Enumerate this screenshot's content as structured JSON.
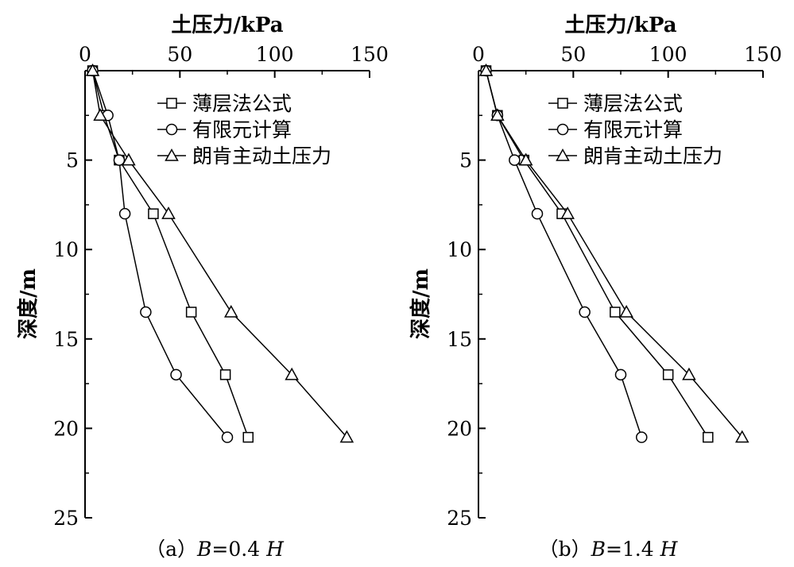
{
  "chart_data": [
    {
      "type": "line",
      "xlabel": "土压力/kPa",
      "ylabel": "深度/m",
      "xlim": [
        0,
        150
      ],
      "ylim": [
        0,
        25
      ],
      "x_axis_position": "top",
      "y_axis_inverted": true,
      "xticks": [
        0,
        50,
        100,
        150
      ],
      "yticks": [
        5,
        10,
        15,
        20,
        25
      ],
      "grid": false,
      "legend_position": "top-right",
      "caption": {
        "prefix": "（a）",
        "var": "B",
        "mid": "=0.4 ",
        "var2": "H"
      },
      "series": [
        {
          "name": "薄层法公式",
          "marker": "square",
          "points": [
            [
              4,
              0
            ],
            [
              10,
              2.5
            ],
            [
              18,
              5
            ],
            [
              36,
              8
            ],
            [
              56,
              13.5
            ],
            [
              74,
              17
            ],
            [
              86,
              20.5
            ]
          ]
        },
        {
          "name": "有限元计算",
          "marker": "circle",
          "points": [
            [
              4,
              0
            ],
            [
              12,
              2.5
            ],
            [
              18,
              5
            ],
            [
              21,
              8
            ],
            [
              32,
              13.5
            ],
            [
              48,
              17
            ],
            [
              75,
              20.5
            ]
          ]
        },
        {
          "name": "朗肯主动土压力",
          "marker": "triangle",
          "points": [
            [
              4,
              0
            ],
            [
              8,
              2.5
            ],
            [
              23,
              5
            ],
            [
              44,
              8
            ],
            [
              77,
              13.5
            ],
            [
              109,
              17
            ],
            [
              138,
              20.5
            ]
          ]
        }
      ]
    },
    {
      "type": "line",
      "xlabel": "土压力/kPa",
      "ylabel": "深度/m",
      "xlim": [
        0,
        150
      ],
      "ylim": [
        0,
        25
      ],
      "x_axis_position": "top",
      "y_axis_inverted": true,
      "xticks": [
        0,
        50,
        100,
        150
      ],
      "yticks": [
        5,
        10,
        15,
        20,
        25
      ],
      "grid": false,
      "legend_position": "top-right",
      "caption": {
        "prefix": "（b）",
        "var": "B",
        "mid": "=1.4 ",
        "var2": "H"
      },
      "series": [
        {
          "name": "薄层法公式",
          "marker": "square",
          "points": [
            [
              4,
              0
            ],
            [
              10,
              2.5
            ],
            [
              24,
              5
            ],
            [
              44,
              8
            ],
            [
              72,
              13.5
            ],
            [
              100,
              17
            ],
            [
              121,
              20.5
            ]
          ]
        },
        {
          "name": "有限元计算",
          "marker": "circle",
          "points": [
            [
              4,
              0
            ],
            [
              10,
              2.5
            ],
            [
              19,
              5
            ],
            [
              31,
              8
            ],
            [
              56,
              13.5
            ],
            [
              75,
              17
            ],
            [
              86,
              20.5
            ]
          ]
        },
        {
          "name": "朗肯主动土压力",
          "marker": "triangle",
          "points": [
            [
              4,
              0
            ],
            [
              10,
              2.5
            ],
            [
              25,
              5
            ],
            [
              47,
              8
            ],
            [
              78,
              13.5
            ],
            [
              111,
              17
            ],
            [
              139,
              20.5
            ]
          ]
        }
      ]
    }
  ]
}
